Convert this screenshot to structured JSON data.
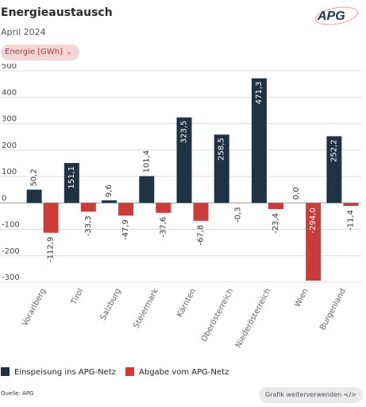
{
  "header": {
    "title": "Energieaustausch",
    "subtitle": "April 2024",
    "logo_text": "APG"
  },
  "unit_selector": {
    "label": "Energie [GWh]",
    "icon": "chevron-down-icon"
  },
  "chart_data": {
    "type": "bar",
    "categories": [
      "Vorarlberg",
      "Tirol",
      "Salzburg",
      "Steiermark",
      "Kärnten",
      "Oberösterreich",
      "Niederösterreich",
      "Wien",
      "Burgenland"
    ],
    "series": [
      {
        "name": "Einspeisung ins APG-Netz",
        "color": "#1f3344",
        "values": [
          50.2,
          151.1,
          9.6,
          101.4,
          323.5,
          258.5,
          471.3,
          0.0,
          252.2
        ],
        "labels": [
          "50,2",
          "151,1",
          "9,6",
          "101,4",
          "323,5",
          "258,5",
          "471,3",
          "0,0",
          "252,2"
        ]
      },
      {
        "name": "Abgabe vom APG-Netz",
        "color": "#cc3d3a",
        "values": [
          -112.9,
          -33.3,
          -47.9,
          -37.6,
          -67.8,
          -0.3,
          -23.4,
          -294.0,
          -11.4
        ],
        "labels": [
          "-112,9",
          "-33,3",
          "-47,9",
          "-37,6",
          "-67,8",
          "-0,3",
          "-23,4",
          "-294,0",
          "-11,4"
        ]
      }
    ],
    "yticks": [
      500,
      400,
      300,
      200,
      100,
      0,
      -100,
      -200,
      -300
    ],
    "ytick_labels": [
      "500",
      "400",
      "300",
      "200",
      "100",
      "0",
      "-100",
      "-200",
      "-300"
    ],
    "ylim": [
      -300,
      500
    ],
    "grid": true,
    "legend_position": "bottom-left"
  },
  "footer": {
    "source": "Quelle: APG",
    "share_button": "Grafik weiterverwenden </>"
  }
}
